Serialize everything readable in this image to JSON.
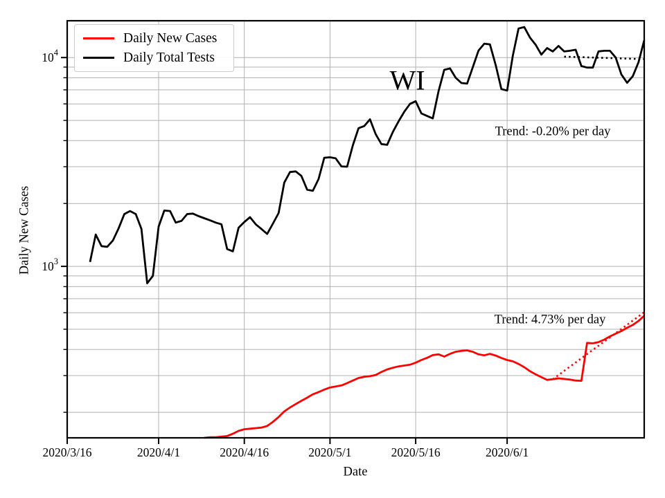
{
  "chart_data": {
    "type": "line",
    "annotations": {
      "state_label": "WI",
      "tests_trend": "Trend: -0.20% per day",
      "cases_trend": "Trend: 4.73% per day"
    },
    "x_axis": {
      "label": "Date",
      "domain_days": [
        0,
        101
      ],
      "start_date": "2020/3/16",
      "tick_days": [
        0,
        16,
        31,
        46,
        61,
        77
      ],
      "tick_labels": [
        "2020/3/16",
        "2020/4/1",
        "2020/4/16",
        "2020/5/1",
        "2020/5/16",
        "2020/6/1"
      ]
    },
    "y_axis": {
      "label": "Daily New Cases",
      "scale": "log",
      "range": [
        151,
        15000
      ],
      "major_ticks": [
        1000,
        10000
      ],
      "grid": true
    },
    "legend": {
      "position": "upper-left",
      "items": [
        {
          "label": "Daily New Cases",
          "color": "#ff0000"
        },
        {
          "label": "Daily Total Tests",
          "color": "#000000"
        }
      ]
    },
    "series": [
      {
        "name": "Daily Total Tests",
        "color": "#000000",
        "style": "solid",
        "start_day": 4,
        "values": [
          1050,
          1420,
          1250,
          1240,
          1330,
          1520,
          1780,
          1840,
          1780,
          1510,
          830,
          900,
          1550,
          1850,
          1840,
          1620,
          1650,
          1780,
          1790,
          1740,
          1700,
          1660,
          1620,
          1590,
          1210,
          1180,
          1530,
          1630,
          1720,
          1590,
          1510,
          1430,
          1600,
          1800,
          2520,
          2830,
          2850,
          2710,
          2330,
          2300,
          2620,
          3310,
          3330,
          3290,
          3010,
          3000,
          3800,
          4590,
          4700,
          5060,
          4290,
          3850,
          3820,
          4400,
          4950,
          5500,
          6000,
          6180,
          5400,
          5250,
          5110,
          6900,
          8730,
          8870,
          8000,
          7550,
          7500,
          9000,
          10800,
          11650,
          11560,
          9200,
          7060,
          6950,
          10200,
          13770,
          13990,
          12470,
          11500,
          10330,
          11100,
          10690,
          11360,
          10690,
          10770,
          10900,
          9100,
          8950,
          8950,
          10700,
          10770,
          10770,
          10000,
          8300,
          7570,
          8140,
          9500,
          12100
        ]
      },
      {
        "name": "Daily New Cases",
        "color": "#ff0000",
        "style": "solid",
        "start_day": 24,
        "values": [
          151,
          152,
          152,
          153,
          154,
          158,
          163,
          166,
          167,
          168,
          169,
          172,
          180,
          190,
          202,
          211,
          219,
          227,
          235,
          244,
          250,
          257,
          263,
          266,
          269,
          276,
          284,
          292,
          296,
          298,
          302,
          312,
          321,
          327,
          332,
          335,
          338,
          346,
          356,
          365,
          376,
          379,
          370,
          381,
          390,
          394,
          396,
          390,
          379,
          375,
          381,
          374,
          364,
          356,
          351,
          341,
          329,
          315,
          304,
          295,
          286,
          288,
          291,
          289,
          287,
          284,
          283,
          430,
          428,
          434,
          446,
          462,
          476,
          490,
          508,
          524,
          548,
          580
        ]
      },
      {
        "name": "Daily Total Tests Trend",
        "color": "#000000",
        "style": "dotted",
        "trend": {
          "start_day": 87,
          "end_day": 101,
          "start_value": 10100,
          "pct_per_day": -0.2
        }
      },
      {
        "name": "Daily New Cases Trend",
        "color": "#ff0000",
        "style": "dotted",
        "trend": {
          "start_day": 85,
          "end_day": 101,
          "start_value": 288,
          "pct_per_day": 4.73
        }
      }
    ]
  }
}
